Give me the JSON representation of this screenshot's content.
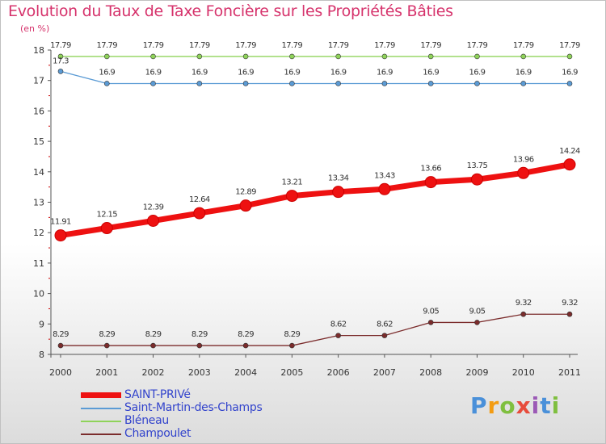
{
  "title": "Evolution du Taux de Taxe Foncière sur les Propriétés Bâties",
  "subtitle": "(en %)",
  "logo": {
    "letters": [
      "P",
      "r",
      "o",
      "x",
      "i",
      "t",
      "i"
    ],
    "colors": [
      "#4a90d9",
      "#f39c12",
      "#7fbf3f",
      "#e74c3c",
      "#9b59b6",
      "#4a90d9",
      "#7fbf3f"
    ]
  },
  "chart_data": {
    "type": "line",
    "categories": [
      "2000",
      "2001",
      "2002",
      "2003",
      "2004",
      "2005",
      "2006",
      "2007",
      "2008",
      "2009",
      "2010",
      "2011"
    ],
    "ylim": [
      8,
      18
    ],
    "yticks": [
      "8",
      "9",
      "10",
      "11",
      "12",
      "13",
      "14",
      "15",
      "16",
      "17",
      "18"
    ],
    "xlabel": "",
    "ylabel": "",
    "legend_position": "bottom-left",
    "series": [
      {
        "name": "SAINT-PRIVé",
        "color": "#ee1111",
        "width": 7,
        "marker": 7,
        "values": [
          11.91,
          12.15,
          12.39,
          12.64,
          12.89,
          13.21,
          13.34,
          13.43,
          13.66,
          13.75,
          13.96,
          14.24
        ],
        "labels": [
          "11.91",
          "12.15",
          "12.39",
          "12.64",
          "12.89",
          "13.21",
          "13.34",
          "13.43",
          "13.66",
          "13.75",
          "13.96",
          "14.24"
        ]
      },
      {
        "name": "Saint-Martin-des-Champs",
        "color": "#5b9bd5",
        "width": 1.3,
        "marker": 3,
        "values": [
          17.3,
          16.9,
          16.9,
          16.9,
          16.9,
          16.9,
          16.9,
          16.9,
          16.9,
          16.9,
          16.9,
          16.9
        ],
        "labels": [
          "17.3",
          "16.9",
          "16.9",
          "16.9",
          "16.9",
          "16.9",
          "16.9",
          "16.9",
          "16.9",
          "16.9",
          "16.9",
          "16.9"
        ]
      },
      {
        "name": "Bléneau",
        "color": "#8fd35a",
        "width": 1.3,
        "marker": 3,
        "values": [
          17.79,
          17.79,
          17.79,
          17.79,
          17.79,
          17.79,
          17.79,
          17.79,
          17.79,
          17.79,
          17.79,
          17.79
        ],
        "labels": [
          "17.79",
          "17.79",
          "17.79",
          "17.79",
          "17.79",
          "17.79",
          "17.79",
          "17.79",
          "17.79",
          "17.79",
          "17.79",
          "17.79"
        ]
      },
      {
        "name": "Champoulet",
        "color": "#7b2c2c",
        "width": 1.3,
        "marker": 3,
        "values": [
          8.29,
          8.29,
          8.29,
          8.29,
          8.29,
          8.29,
          8.62,
          8.62,
          9.05,
          9.05,
          9.32,
          9.32
        ],
        "labels": [
          "8.29",
          "8.29",
          "8.29",
          "8.29",
          "8.29",
          "8.29",
          "8.62",
          "8.62",
          "9.05",
          "9.05",
          "9.32",
          "9.32"
        ]
      }
    ]
  }
}
